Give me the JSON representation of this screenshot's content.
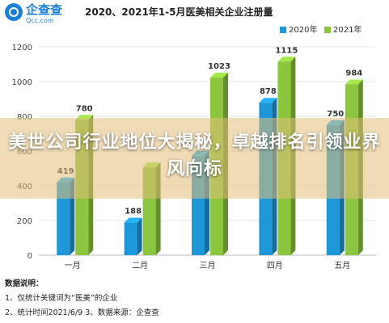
{
  "logo": {
    "name": "企查查",
    "domain": "Qcc.com",
    "icon": "magnifier-logo-icon"
  },
  "overlay": {
    "headline": "美世公司行业地位大揭秘，卓越排名引领业界风向标"
  },
  "notes": {
    "heading": "数据说明：",
    "line1": "1、仅统计关键词为“医美”的企业",
    "line2": "2、统计时间2021/6/9   3、数据来源：企查查"
  },
  "colors": {
    "series_2020": "#1e97d8",
    "series_2021": "#8cc63f",
    "brand": "#1a7fd6"
  },
  "chart_data": {
    "type": "bar",
    "title": "2020、2021年1-5月医美相关企业注册量",
    "categories": [
      "一月",
      "二月",
      "三月",
      "四月",
      "五月"
    ],
    "series": [
      {
        "name": "2020年",
        "values": [
          419,
          188,
          573,
          878,
          750
        ]
      },
      {
        "name": "2021年",
        "values": [
          780,
          505,
          1023,
          1115,
          984
        ]
      }
    ],
    "data_labels": {
      "2020年": [
        "419",
        "188",
        "",
        "878",
        "750"
      ],
      "2021年": [
        "780",
        "",
        "1023",
        "1115",
        "984"
      ]
    },
    "ylim": [
      0,
      1200
    ],
    "yticks": [
      0,
      200,
      400,
      600,
      800,
      1000,
      1200
    ],
    "legend": "top-right",
    "grid": true,
    "bar_style": "3d"
  }
}
